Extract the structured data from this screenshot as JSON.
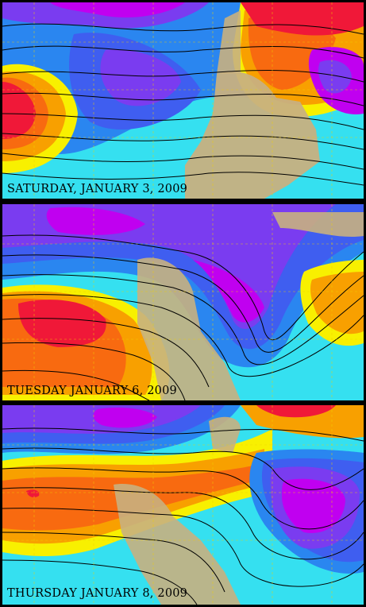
{
  "panels": [
    {
      "caption": "SATURDAY, JANUARY 3, 2009"
    },
    {
      "caption": "TUESDAY JANUARY 6, 2009"
    },
    {
      "caption": "THURSDAY JANUARY 8, 2009"
    }
  ],
  "colors": {
    "deep_low": "#c000f0",
    "low": "#7a3cf0",
    "mid_low": "#3f5ef0",
    "blue": "#2a86f0",
    "cyan": "#35e0f0",
    "yellow": "#f8f000",
    "orange": "#f8a000",
    "dark_orange": "#f86a10",
    "red_high": "#f01838",
    "land": "#c8b080"
  }
}
